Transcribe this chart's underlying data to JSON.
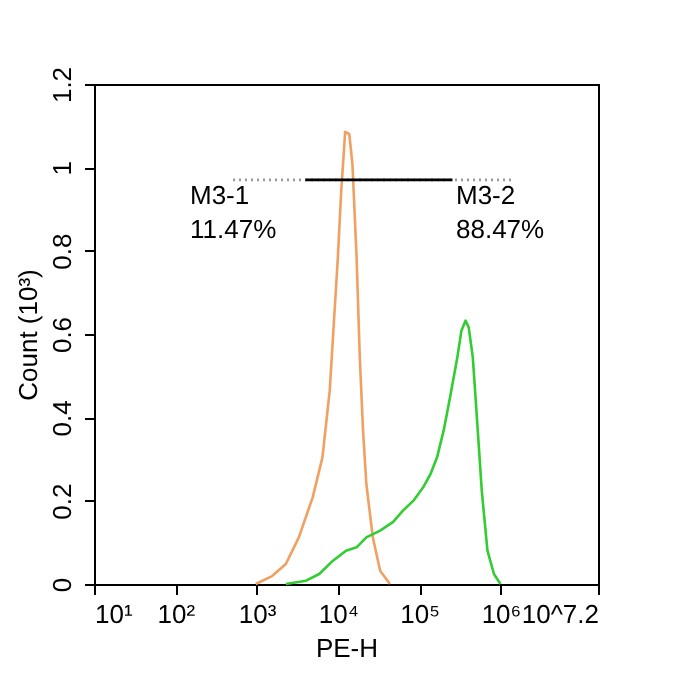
{
  "chart_data": {
    "type": "line",
    "xlabel": "PE-H",
    "ylabel": "Count (10³)",
    "log": "x",
    "marker": "none",
    "xlim": [
      10,
      15848932
    ],
    "ylim": [
      0,
      1.2
    ],
    "xticks": [
      {
        "value": 10,
        "label": "10¹"
      },
      {
        "value": 100,
        "label": "10²"
      },
      {
        "value": 1000,
        "label": "10³"
      },
      {
        "value": 10000,
        "label": "10⁴"
      },
      {
        "value": 100000,
        "label": "10⁵"
      },
      {
        "value": 1000000,
        "label": "10⁶"
      },
      {
        "value": 15848932,
        "label": "10^7.2"
      }
    ],
    "yticks": [
      0,
      0.2,
      0.4,
      0.6,
      0.8,
      1,
      1.2
    ],
    "series": [
      {
        "color": "#f0a060",
        "line_style": "solid",
        "x": [
          977,
          1550,
          2290,
          3310,
          4900,
          6460,
          7940,
          8910,
          10000,
          11000,
          12300,
          13800,
          15100,
          17000,
          18600,
          20400,
          22400,
          26900,
          33100,
          43700
        ],
        "values": [
          0,
          0.019,
          0.048,
          0.112,
          0.208,
          0.304,
          0.464,
          0.624,
          0.784,
          0.944,
          1.085,
          1.08,
          1.008,
          0.784,
          0.544,
          0.368,
          0.24,
          0.112,
          0.032,
          0
        ]
      },
      {
        "color": "#33cc33",
        "line_style": "solid",
        "x": [
          2290,
          4070,
          5890,
          8710,
          12600,
          17000,
          22400,
          33100,
          47900,
          63100,
          85100,
          112000,
          138000,
          166000,
          200000,
          240000,
          295000,
          331000,
          372000,
          407000,
          457000,
          513000,
          589000,
          692000,
          832000,
          1000000
        ],
        "values": [
          0,
          0.008,
          0.024,
          0.056,
          0.08,
          0.088,
          0.112,
          0.128,
          0.149,
          0.176,
          0.2,
          0.232,
          0.264,
          0.304,
          0.368,
          0.448,
          0.544,
          0.608,
          0.632,
          0.616,
          0.544,
          0.4,
          0.224,
          0.08,
          0.024,
          0
        ]
      },
      {
        "color": "#999999",
        "line_style": "dotted",
        "x": [
          513,
          1480000
        ],
        "values": [
          0.97,
          0.97
        ]
      },
      {
        "color": "#000000",
        "line_style": "solid",
        "x": [
          3980,
          257000
        ],
        "values": [
          0.97,
          0.97
        ]
      }
    ],
    "annotations": [
      "M3-1\n11.47%",
      "M3-2\n88.47%"
    ]
  }
}
